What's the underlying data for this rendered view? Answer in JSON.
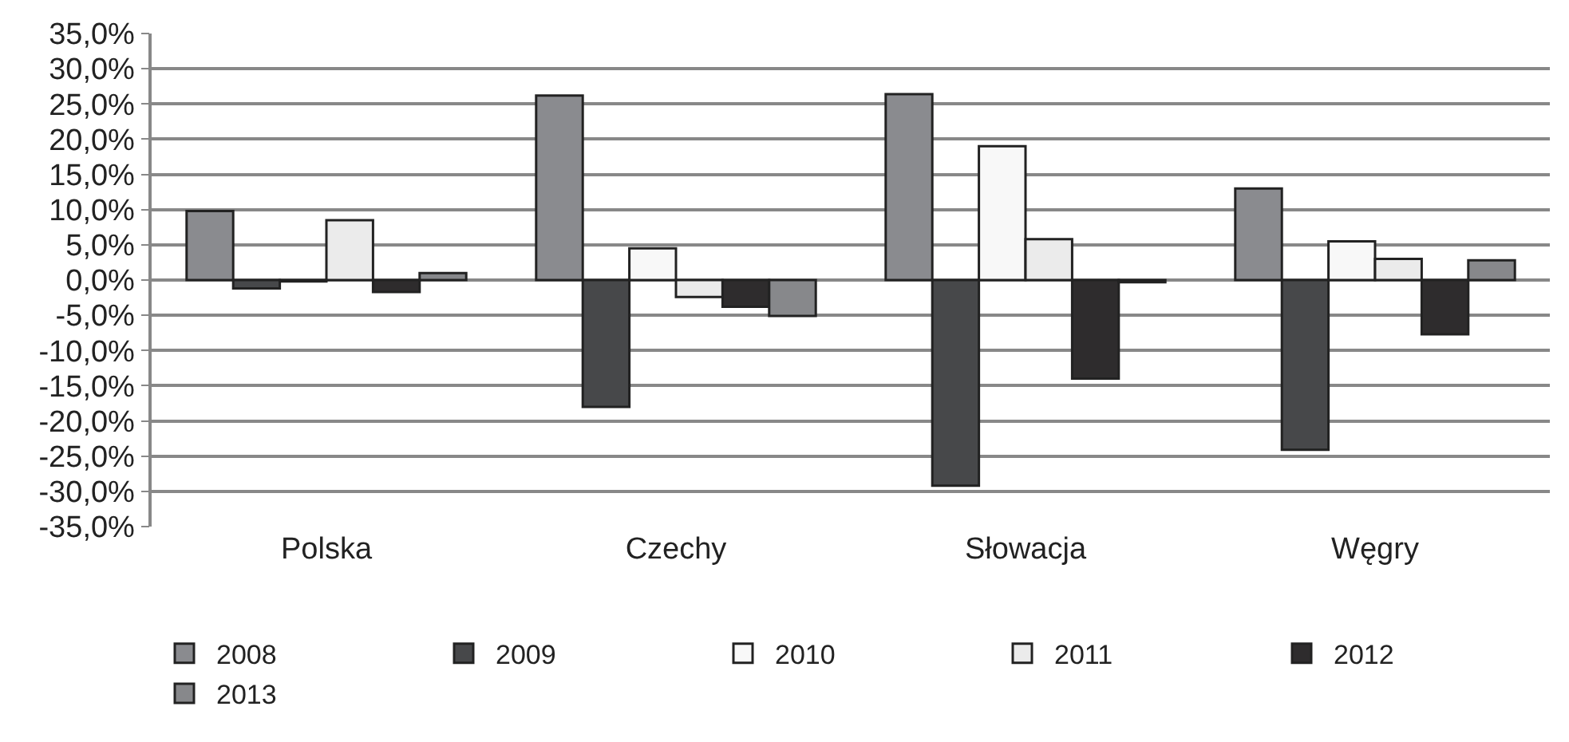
{
  "chart_data": {
    "type": "bar",
    "categories": [
      "Polska",
      "Czechy",
      "Słowacja",
      "Węgry"
    ],
    "series": [
      {
        "name": "2008",
        "color": "#8a8b8f",
        "values": [
          9.8,
          26.2,
          26.4,
          13.0
        ]
      },
      {
        "name": "2009",
        "color": "#47484a",
        "values": [
          -1.2,
          -18.0,
          -29.2,
          -24.1
        ]
      },
      {
        "name": "2010",
        "color": "#f8f8f8",
        "values": [
          -0.2,
          4.5,
          19.0,
          5.5
        ]
      },
      {
        "name": "2011",
        "color": "#ebebeb",
        "values": [
          8.5,
          -2.4,
          5.8,
          3.0
        ]
      },
      {
        "name": "2012",
        "color": "#2e2c2d",
        "values": [
          -1.7,
          -3.8,
          -14.0,
          -7.7
        ]
      },
      {
        "name": "2013",
        "color": "#87888b",
        "values": [
          1.0,
          -5.1,
          -0.3,
          2.8
        ]
      }
    ],
    "ylim": [
      -35,
      35
    ],
    "yticks": [
      {
        "value": -35,
        "label": "-35,0%"
      },
      {
        "value": -30,
        "label": "-30,0%"
      },
      {
        "value": -25,
        "label": "-25,0%"
      },
      {
        "value": -20,
        "label": "-20,0%"
      },
      {
        "value": -15,
        "label": "-15,0%"
      },
      {
        "value": -10,
        "label": "-10,0%"
      },
      {
        "value": -5,
        "label": "-5,0%"
      },
      {
        "value": 0,
        "label": "0,0%"
      },
      {
        "value": 5,
        "label": "5,0%"
      },
      {
        "value": 10,
        "label": "10,0%"
      },
      {
        "value": 15,
        "label": "15,0%"
      },
      {
        "value": 20,
        "label": "20,0%"
      },
      {
        "value": 25,
        "label": "25,0%"
      },
      {
        "value": 30,
        "label": "30,0%"
      },
      {
        "value": 35,
        "label": "35,0%"
      }
    ],
    "grid": "y",
    "legend": "bottom"
  }
}
